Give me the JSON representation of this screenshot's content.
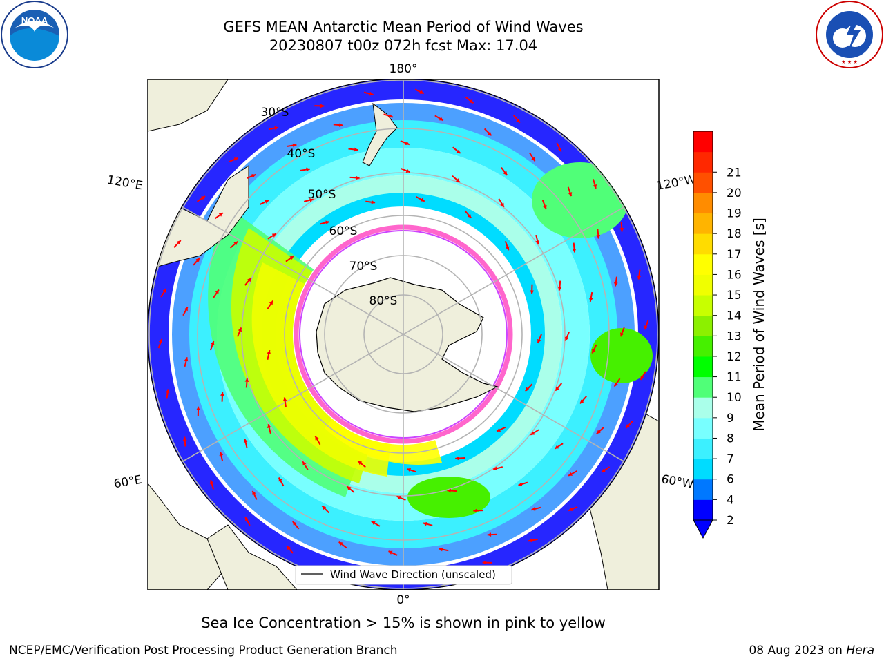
{
  "header": {
    "title_line1": "GEFS MEAN Antarctic Mean Period of Wind Waves",
    "title_line2": "20230807 t00z 072h fcst   Max: 17.04"
  },
  "logos": {
    "noaa_text": "NOAA",
    "noaa_ring_text": "NATIONAL OCEANIC AND ATMOSPHERIC ADMINISTRATION · U.S. DEPARTMENT OF COMMERCE",
    "nws_ring_text": "NATIONAL WEATHER SERVICE"
  },
  "map": {
    "longitude_labels": {
      "top": "180°",
      "bottom": "0°",
      "left_upper": "120°E",
      "left_lower": "60°E",
      "right_upper": "120°W",
      "right_lower": "60°W"
    },
    "latitude_labels": [
      "30°S",
      "40°S",
      "50°S",
      "60°S",
      "70°S",
      "80°S"
    ],
    "legend_label": "Wind Wave Direction (unscaled)",
    "colors": {
      "land": "#efefdc",
      "ice_edge": "#ff66cc",
      "ocean_bg": "#ffffff",
      "arrow": "#ff0000"
    }
  },
  "colorbar": {
    "label": "Mean Period of Wind Waves [s]",
    "ticks": [
      "2",
      "4",
      "6",
      "7",
      "8",
      "9",
      "10",
      "11",
      "12",
      "13",
      "14",
      "15",
      "16",
      "17",
      "18",
      "19",
      "20",
      "21"
    ],
    "colors": [
      "#0000ff",
      "#0078ff",
      "#00dcff",
      "#3cf0ff",
      "#78ffff",
      "#aaffea",
      "#50ff78",
      "#00ff00",
      "#46f000",
      "#8cf000",
      "#c8ff00",
      "#f0ff00",
      "#ffff00",
      "#ffdc00",
      "#ffb400",
      "#ff8c00",
      "#ff5000",
      "#ff2800",
      "#ff0000"
    ],
    "under_color": "#0000ff"
  },
  "caption": "Sea Ice Concentration > 15% is shown in pink to yellow",
  "footer": {
    "left": "NCEP/EMC/Verification Post Processing Product Generation Branch",
    "right_date": "08 Aug 2023 on",
    "right_machine": "Hera"
  }
}
